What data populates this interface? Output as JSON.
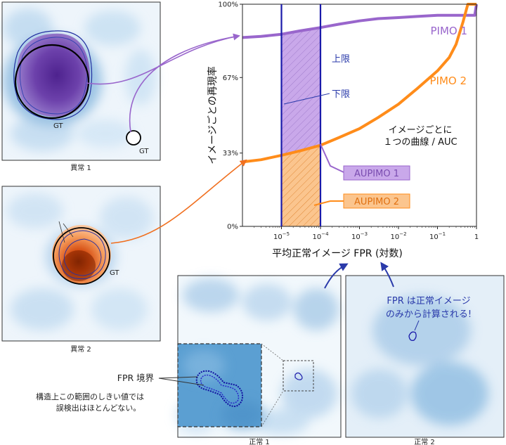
{
  "panels": {
    "anomaly1_caption": "異常 1",
    "anomaly2_caption": "異常 2",
    "normal1_caption": "正常 1",
    "normal2_caption": "正常 2",
    "gt_label": "GT"
  },
  "annotations": {
    "fpr_boundary": "FPR 境界",
    "boundary_note_line1": "構造上この範囲のしきい値では",
    "boundary_note_line2": "誤検出はほとんどない。",
    "fpr_note_line1": "FPR は正常イメージ",
    "fpr_note_line2": "のみから計算される!",
    "upper_limit": "上限",
    "lower_limit": "下限",
    "per_image_line1": "イメージごとに",
    "per_image_line2": "１つの曲線 / AUC"
  },
  "colors": {
    "pimo1": "#9966cc",
    "pimo2": "#ff8c1a",
    "bounds": "#1a1aaa",
    "pimo1_fill": "#c9a8ea",
    "pimo2_fill": "#fbc58e"
  },
  "chart_data": {
    "type": "line",
    "xlabel": "平均正常イメージ FPR (対数)",
    "ylabel": "イメージごとの再現率",
    "x_scale": "log",
    "xlim": [
      1e-06,
      1
    ],
    "ylim": [
      0,
      100
    ],
    "x_ticks": [
      {
        "value": 1e-05,
        "base": "10",
        "exp": "−5"
      },
      {
        "value": 0.0001,
        "base": "10",
        "exp": "−4"
      },
      {
        "value": 0.001,
        "base": "10",
        "exp": "−3"
      },
      {
        "value": 0.01,
        "base": "10",
        "exp": "−2"
      },
      {
        "value": 0.1,
        "base": "10",
        "exp": "−1"
      },
      {
        "value": 1,
        "base": "1",
        "exp": ""
      }
    ],
    "y_ticks": [
      {
        "value": 0,
        "label": "0%"
      },
      {
        "value": 33,
        "label": "33%"
      },
      {
        "value": 67,
        "label": "67%"
      },
      {
        "value": 100,
        "label": "100%"
      }
    ],
    "integration_bounds": [
      1e-05,
      0.0001
    ],
    "series": [
      {
        "name": "PIMO 1",
        "x": [
          1e-06,
          3e-06,
          1e-05,
          3e-05,
          0.0001,
          0.0003,
          0.001,
          0.003,
          0.01,
          0.03,
          0.1,
          0.3,
          0.6,
          0.9,
          1
        ],
        "y": [
          85,
          85.5,
          86.5,
          88,
          89.5,
          91,
          92.5,
          93.5,
          94,
          94.5,
          95,
          95,
          95,
          95,
          100
        ]
      },
      {
        "name": "PIMO 2",
        "x": [
          1e-06,
          3e-06,
          1e-05,
          3e-05,
          0.0001,
          0.0003,
          0.001,
          0.003,
          0.01,
          0.03,
          0.1,
          0.2,
          0.3,
          0.45,
          0.6,
          1
        ],
        "y": [
          29,
          30,
          32,
          34,
          36.5,
          40,
          44,
          49,
          55,
          62,
          70,
          76,
          82,
          92,
          100,
          100
        ]
      }
    ],
    "series_labels": [
      "PIMO 1",
      "PIMO 2"
    ],
    "legend_items": [
      "AUPIMO 1",
      "AUPIMO 2"
    ]
  }
}
